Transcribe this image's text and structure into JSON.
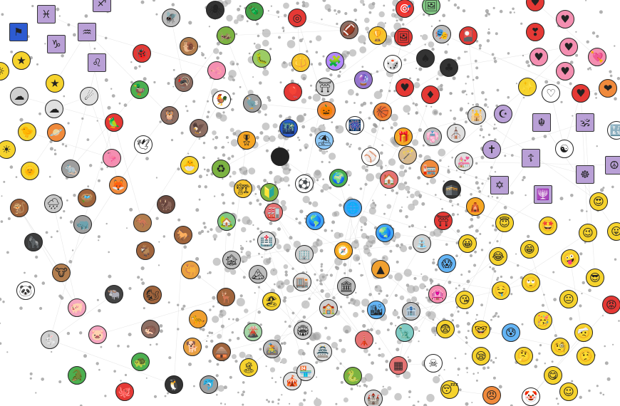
{
  "graph": {
    "edge_color": "#d9d9d9",
    "dot_color": "#9e9e9e",
    "nodes": [
      {
        "name": "pisces",
        "glyph": "♓",
        "color": "#b9a0d6",
        "kind": "square"
      },
      {
        "name": "aquarius",
        "glyph": "♒",
        "color": "#b9a0d6",
        "kind": "square"
      },
      {
        "name": "capricorn",
        "glyph": "♑",
        "color": "#b9a0d6",
        "kind": "square"
      },
      {
        "name": "leo",
        "glyph": "♌",
        "color": "#b9a0d6",
        "kind": "square"
      },
      {
        "name": "sagittarius",
        "glyph": "♐",
        "color": "#b9a0d6",
        "kind": "square"
      },
      {
        "name": "flag",
        "glyph": "⚑",
        "color": "#2d5bd1",
        "kind": "square"
      },
      {
        "name": "star",
        "glyph": "★",
        "color": "#f6d32d"
      },
      {
        "name": "star",
        "glyph": "★",
        "color": "#f6d32d"
      },
      {
        "name": "comet",
        "glyph": "☄",
        "color": "#e0e0e0"
      },
      {
        "name": "cloud",
        "glyph": "☁",
        "color": "#d0d0d0"
      },
      {
        "name": "cloud",
        "glyph": "☁",
        "color": "#e0e0e0"
      },
      {
        "name": "chick",
        "glyph": "🐤",
        "color": "#f6d32d"
      },
      {
        "name": "ringed-planet",
        "glyph": "🪐",
        "color": "#f08a3c"
      },
      {
        "name": "sun",
        "glyph": "☀",
        "color": "#f6d32d"
      },
      {
        "name": "sun-with-face",
        "glyph": "🌞",
        "color": "#f6d32d"
      },
      {
        "name": "monkey",
        "glyph": "🐒",
        "color": "#a0643c"
      },
      {
        "name": "cloud-with-rain",
        "glyph": "🌧",
        "color": "#c8c8c8"
      },
      {
        "name": "gorilla",
        "glyph": "🦍",
        "color": "#3d3d3d"
      },
      {
        "name": "cow",
        "glyph": "🐮",
        "color": "#b27d4e"
      },
      {
        "name": "panda",
        "glyph": "🐼",
        "color": "#ffffff"
      },
      {
        "name": "pig",
        "glyph": "🐖",
        "color": "#f4a6c0"
      },
      {
        "name": "pig-face",
        "glyph": "🐷",
        "color": "#f4a6c0"
      },
      {
        "name": "rabbit",
        "glyph": "🐇",
        "color": "#d0d0d0"
      },
      {
        "name": "crocodile",
        "glyph": "🐊",
        "color": "#4caf50"
      },
      {
        "name": "octopus",
        "glyph": "🐙",
        "color": "#e53935"
      },
      {
        "name": "penguin",
        "glyph": "🐧",
        "color": "#333333"
      },
      {
        "name": "turtle",
        "glyph": "🐢",
        "color": "#4caf50"
      },
      {
        "name": "dolphin",
        "glyph": "🐬",
        "color": "#9e9e9e"
      },
      {
        "name": "hedgehog",
        "glyph": "🦔",
        "color": "#8d6e63"
      },
      {
        "name": "leopard",
        "glyph": "🐆",
        "color": "#f0a030"
      },
      {
        "name": "dog",
        "glyph": "🐕",
        "color": "#e8a040"
      },
      {
        "name": "chipmunk",
        "glyph": "🐿",
        "color": "#a0643c"
      },
      {
        "name": "deer",
        "glyph": "🦌",
        "color": "#a0643c"
      },
      {
        "name": "water-buffalo",
        "glyph": "🐃",
        "color": "#444444"
      },
      {
        "name": "camel",
        "glyph": "🐫",
        "color": "#e8a040"
      },
      {
        "name": "goat",
        "glyph": "🐐",
        "color": "#a0643c"
      },
      {
        "name": "horse",
        "glyph": "🐎",
        "color": "#a0643c"
      },
      {
        "name": "kangaroo",
        "glyph": "🦘",
        "color": "#b27d4e"
      },
      {
        "name": "bison",
        "glyph": "🦬",
        "color": "#6d4c41"
      },
      {
        "name": "rhinoceros",
        "glyph": "🦏",
        "color": "#9e9e9e"
      },
      {
        "name": "nest",
        "glyph": "🪺",
        "color": "#a0643c"
      },
      {
        "name": "fox",
        "glyph": "🦊",
        "color": "#f08a3c"
      },
      {
        "name": "rat",
        "glyph": "🐀",
        "color": "#9e9e9e"
      },
      {
        "name": "flamingo",
        "glyph": "🦩",
        "color": "#f48fb1"
      },
      {
        "name": "dove",
        "glyph": "🕊",
        "color": "#ffffff"
      },
      {
        "name": "parrot",
        "glyph": "🦜",
        "color": "#e53935"
      },
      {
        "name": "owl",
        "glyph": "🦉",
        "color": "#8d6e63"
      },
      {
        "name": "duck",
        "glyph": "🦆",
        "color": "#4caf50"
      },
      {
        "name": "eagle",
        "glyph": "🦅",
        "color": "#8d6e63"
      },
      {
        "name": "lady-beetle",
        "glyph": "🐞",
        "color": "#e53935"
      },
      {
        "name": "snail",
        "glyph": "🐌",
        "color": "#b27d4e"
      },
      {
        "name": "fly",
        "glyph": "🪰",
        "color": "#bdbdbd"
      },
      {
        "name": "spider",
        "glyph": "🕷",
        "color": "#333333"
      },
      {
        "name": "beetle",
        "glyph": "🪲",
        "color": "#43a047"
      },
      {
        "name": "cricket",
        "glyph": "🦗",
        "color": "#7cb342"
      },
      {
        "name": "caterpillar",
        "glyph": "🐛",
        "color": "#9ccc65"
      },
      {
        "name": "worm",
        "glyph": "🪱",
        "color": "#f48fb1"
      },
      {
        "name": "turkey",
        "glyph": "🦃",
        "color": "#8d6e63"
      },
      {
        "name": "rooster",
        "glyph": "🐓",
        "color": "#ffffff"
      },
      {
        "name": "dodo",
        "glyph": "🦤",
        "color": "#9e9e9e"
      },
      {
        "name": "hatching-chick",
        "glyph": "🐣",
        "color": "#f6d32d"
      },
      {
        "name": "recycling-symbol",
        "glyph": "♻",
        "color": "#7cb342"
      },
      {
        "name": "military-medal",
        "glyph": "🎖",
        "color": "#f6a623"
      },
      {
        "name": "sunglasses",
        "glyph": "🕶",
        "color": "#222222"
      },
      {
        "name": "balloon",
        "glyph": "🎈",
        "color": "#e53935"
      },
      {
        "name": "ring-buoy",
        "glyph": "◎",
        "color": "#e53935"
      },
      {
        "name": "trident",
        "glyph": "🔱",
        "color": "#f6c42d"
      },
      {
        "name": "puzzle-piece",
        "glyph": "🧩",
        "color": "#b388ff"
      },
      {
        "name": "shinto-shrine",
        "glyph": "⛩",
        "color": "#d0d0d0"
      },
      {
        "name": "jack-o-lantern",
        "glyph": "🎃",
        "color": "#f08a3c"
      },
      {
        "name": "night-globe",
        "glyph": "🌃",
        "color": "#2d5bd1"
      },
      {
        "name": "basketball",
        "glyph": "🏀",
        "color": "#f08a3c"
      },
      {
        "name": "fireworks",
        "glyph": "🎆",
        "color": "#ffffff"
      },
      {
        "name": "gift",
        "glyph": "🎁",
        "color": "#f6a623"
      },
      {
        "name": "umbrella-on-ground",
        "glyph": "⛱",
        "color": "#90caf9"
      },
      {
        "name": "baseball",
        "glyph": "⚾",
        "color": "#ffffff"
      },
      {
        "name": "american-football",
        "glyph": "🏈",
        "color": "#8d6e63"
      },
      {
        "name": "trophy",
        "glyph": "🏆",
        "color": "#f6c42d"
      },
      {
        "name": "framed-picture",
        "glyph": "🖼",
        "color": "#e53935"
      },
      {
        "name": "bullseye",
        "glyph": "🎯",
        "color": "#e53935"
      },
      {
        "name": "framed-landscape",
        "glyph": "🖼",
        "color": "#81c784"
      },
      {
        "name": "performing-arts",
        "glyph": "🎭",
        "color": "#bdbdbd"
      },
      {
        "name": "flower-playing-cards",
        "glyph": "🎴",
        "color": "#e53935"
      },
      {
        "name": "game-die",
        "glyph": "🎲",
        "color": "#ffffff"
      },
      {
        "name": "crystal-ball",
        "glyph": "🔮",
        "color": "#9575cd"
      },
      {
        "name": "spade-suit",
        "glyph": "♠",
        "color": "#333333"
      },
      {
        "name": "club-suit",
        "glyph": "♣",
        "color": "#333333"
      },
      {
        "name": "heart-suit",
        "glyph": "♥",
        "color": "#e53935"
      },
      {
        "name": "diamond-suit",
        "glyph": "♦",
        "color": "#e53935"
      },
      {
        "name": "magic-wand",
        "glyph": "🪄",
        "color": "#d7b98e"
      },
      {
        "name": "kimono",
        "glyph": "👘",
        "color": "#bdbdbd"
      },
      {
        "name": "church",
        "glyph": "⛪",
        "color": "#e0e0e0"
      },
      {
        "name": "mosque",
        "glyph": "🕌",
        "color": "#d0d0d0"
      },
      {
        "name": "crescent-moon",
        "glyph": "☪",
        "color": "#b9a0d6"
      },
      {
        "name": "latin-cross",
        "glyph": "✝",
        "color": "#b9a0d6"
      },
      {
        "name": "wedding-chapel",
        "glyph": "💒",
        "color": "#e0e0e0"
      },
      {
        "name": "house",
        "glyph": "🏠",
        "color": "#e57373"
      },
      {
        "name": "post-office",
        "glyph": "🏣",
        "color": "#f08a3c"
      },
      {
        "name": "kaaba",
        "glyph": "🕋",
        "color": "#333333"
      },
      {
        "name": "star-of-david",
        "glyph": "✡",
        "color": "#b9a0d6",
        "kind": "square"
      },
      {
        "name": "menorah",
        "glyph": "🕎",
        "color": "#b9a0d6",
        "kind": "square"
      },
      {
        "name": "khanda",
        "glyph": "☬",
        "color": "#b9a0d6",
        "kind": "square"
      },
      {
        "name": "om",
        "glyph": "🕉",
        "color": "#b9a0d6",
        "kind": "square"
      },
      {
        "name": "orthodox-cross",
        "glyph": "☦",
        "color": "#b9a0d6",
        "kind": "square"
      },
      {
        "name": "yin-yang",
        "glyph": "☯",
        "color": "#ffffff"
      },
      {
        "name": "wheel-of-dharma",
        "glyph": "☸",
        "color": "#b9a0d6",
        "kind": "square"
      },
      {
        "name": "peace-symbol",
        "glyph": "☮",
        "color": "#b9a0d6",
        "kind": "square"
      },
      {
        "name": "torii",
        "glyph": "⛩",
        "color": "#e53935"
      },
      {
        "name": "hindu-temple",
        "glyph": "🛕",
        "color": "#f6a623"
      },
      {
        "name": "heart",
        "glyph": "♥",
        "color": "#e53935"
      },
      {
        "name": "pink-heart",
        "glyph": "♥",
        "color": "#f48fb1"
      },
      {
        "name": "heart-exclamation",
        "glyph": "❣",
        "color": "#e53935"
      },
      {
        "name": "small-heart",
        "glyph": "♥",
        "color": "#f48fb1"
      },
      {
        "name": "pink-heart",
        "glyph": "♥",
        "color": "#f48fb1"
      },
      {
        "name": "heart-with-arrow",
        "glyph": "💘",
        "color": "#f48fb1"
      },
      {
        "name": "small-heart",
        "glyph": "♥",
        "color": "#f48fb1"
      },
      {
        "name": "white-heart",
        "glyph": "♡",
        "color": "#ffffff"
      },
      {
        "name": "red-heart",
        "glyph": "♥",
        "color": "#e53935"
      },
      {
        "name": "heart-on-fire",
        "glyph": "❤",
        "color": "#f08a3c"
      },
      {
        "name": "sparkles",
        "glyph": "✨",
        "color": "#f6d32d"
      },
      {
        "name": "input-symbols",
        "glyph": "🔣",
        "color": "#ffffff"
      },
      {
        "name": "construction-crane",
        "glyph": "🏗",
        "color": "#f6c42d"
      },
      {
        "name": "japanese-beginner",
        "glyph": "🔰",
        "color": "#7cb342"
      },
      {
        "name": "soccer-ball",
        "glyph": "⚽",
        "color": "#ffffff"
      },
      {
        "name": "globe-europe-africa",
        "glyph": "🌍",
        "color": "#4caf50"
      },
      {
        "name": "factory",
        "glyph": "🏭",
        "color": "#e57373"
      },
      {
        "name": "house-with-garden",
        "glyph": "🏡",
        "color": "#81c784"
      },
      {
        "name": "globe-meridians",
        "glyph": "🌐",
        "color": "#42a5f5"
      },
      {
        "name": "globe-americas",
        "glyph": "🌎",
        "color": "#42a5f5"
      },
      {
        "name": "globe-asia",
        "glyph": "🌏",
        "color": "#42a5f5"
      },
      {
        "name": "hospital",
        "glyph": "🏥",
        "color": "#e0e0e0"
      },
      {
        "name": "office-building",
        "glyph": "🏢",
        "color": "#d0d0d0"
      },
      {
        "name": "compass",
        "glyph": "🧭",
        "color": "#f6a623"
      },
      {
        "name": "pyramids",
        "glyph": "▲",
        "color": "#f0a030"
      },
      {
        "name": "fountain",
        "glyph": "⛲",
        "color": "#d0d0d0"
      },
      {
        "name": "screaming-face",
        "glyph": "😱",
        "color": "#64b5f6"
      },
      {
        "name": "grinning-face",
        "glyph": "😀",
        "color": "#f6d32d"
      },
      {
        "name": "smiling-face-with-halo",
        "glyph": "😇",
        "color": "#f6d32d"
      },
      {
        "name": "star-struck",
        "glyph": "🤩",
        "color": "#f6d32d"
      },
      {
        "name": "winking-face",
        "glyph": "😉",
        "color": "#f6d32d"
      },
      {
        "name": "heart-eyes",
        "glyph": "😍",
        "color": "#f6d32d"
      },
      {
        "name": "face-with-tongue",
        "glyph": "😛",
        "color": "#f6d32d"
      },
      {
        "name": "derelict-house",
        "glyph": "🏚",
        "color": "#bdbdbd"
      },
      {
        "name": "snow-capped-mountain",
        "glyph": "🏔",
        "color": "#bdbdbd"
      },
      {
        "name": "department-store",
        "glyph": "🏬",
        "color": "#e0e0e0"
      },
      {
        "name": "classical-building",
        "glyph": "🏛",
        "color": "#bdbdbd"
      },
      {
        "name": "school",
        "glyph": "🏫",
        "color": "#d0d0d0"
      },
      {
        "name": "love-hotel",
        "glyph": "🏩",
        "color": "#f48fb1"
      },
      {
        "name": "stadium",
        "glyph": "🏟",
        "color": "#d0d0d0"
      },
      {
        "name": "cityscape",
        "glyph": "🏙",
        "color": "#64b5f6"
      },
      {
        "name": "bank",
        "glyph": "🏦",
        "color": "#bdbdbd"
      },
      {
        "name": "face-with-tears-of-joy",
        "glyph": "😂",
        "color": "#f6d32d"
      },
      {
        "name": "beaming-face",
        "glyph": "😁",
        "color": "#f6d32d"
      },
      {
        "name": "zany-face",
        "glyph": "🤪",
        "color": "#f6d32d"
      },
      {
        "name": "smiling-face-with-sunglasses",
        "glyph": "😎",
        "color": "#f6d32d"
      },
      {
        "name": "angry-face",
        "glyph": "😡",
        "color": "#e53935"
      },
      {
        "name": "face-with-rolling-eyes",
        "glyph": "🙄",
        "color": "#f6d32d"
      },
      {
        "name": "drooling-face",
        "glyph": "🤤",
        "color": "#f6d32d"
      },
      {
        "name": "face-blowing-kiss",
        "glyph": "😘",
        "color": "#f6d32d"
      },
      {
        "name": "neutral-face",
        "glyph": "😐",
        "color": "#f6d32d"
      },
      {
        "name": "partying-face",
        "glyph": "🥳",
        "color": "#f6d32d"
      },
      {
        "name": "face-with-head-bandage",
        "glyph": "🤕",
        "color": "#f6d32d"
      },
      {
        "name": "face-with-monocle",
        "glyph": "🧐",
        "color": "#f6d32d"
      },
      {
        "name": "lying-face",
        "glyph": "🤥",
        "color": "#f6d32d"
      },
      {
        "name": "anxious-face-with-sweat",
        "glyph": "😰",
        "color": "#64b5f6"
      },
      {
        "name": "fearful-face",
        "glyph": "😨",
        "color": "#f6d32d"
      },
      {
        "name": "nerd-face",
        "glyph": "🤓",
        "color": "#f6d32d"
      },
      {
        "name": "sleeping-face",
        "glyph": "😴",
        "color": "#f6d32d"
      },
      {
        "name": "pouting-face",
        "glyph": "😠",
        "color": "#f08a3c"
      },
      {
        "name": "clown-face",
        "glyph": "🤡",
        "color": "#ffffff"
      },
      {
        "name": "face-savoring-food",
        "glyph": "😋",
        "color": "#f6d32d"
      },
      {
        "name": "skull",
        "glyph": "☠",
        "color": "#ffffff"
      },
      {
        "name": "brick",
        "glyph": "▦",
        "color": "#e57373"
      },
      {
        "name": "statue-of-liberty",
        "glyph": "🗽",
        "color": "#80cbc4"
      },
      {
        "name": "tokyo-tower",
        "glyph": "🗼",
        "color": "#e57373"
      },
      {
        "name": "japanese-castle",
        "glyph": "🏯",
        "color": "#e0e0e0"
      },
      {
        "name": "circus-tent",
        "glyph": "🎪",
        "color": "#e0e0e0"
      },
      {
        "name": "volcano",
        "glyph": "🌋",
        "color": "#a5d6a7"
      },
      {
        "name": "beach-with-umbrella",
        "glyph": "🏖",
        "color": "#f6d32d"
      },
      {
        "name": "mountain-biking",
        "glyph": "🚵",
        "color": "#bdbdbd"
      },
      {
        "name": "hut",
        "glyph": "🛖",
        "color": "#a0643c"
      },
      {
        "name": "desert-island",
        "glyph": "🏝",
        "color": "#f6d32d"
      },
      {
        "name": "convenience-store",
        "glyph": "🏪",
        "color": "#e0e0e0"
      },
      {
        "name": "snake",
        "glyph": "🐍",
        "color": "#7cb342"
      },
      {
        "name": "european-castle",
        "glyph": "🏰",
        "color": "#d0d0d0"
      },
      {
        "name": "zzz-face",
        "glyph": "😪",
        "color": "#f6d32d"
      },
      {
        "name": "light-bulb",
        "glyph": "☼",
        "color": "#f6d32d"
      },
      {
        "name": "thinking-face",
        "glyph": "🤔",
        "color": "#f6d32d"
      },
      {
        "name": "smiling-face",
        "glyph": "☺",
        "color": "#f6d32d"
      }
    ]
  }
}
